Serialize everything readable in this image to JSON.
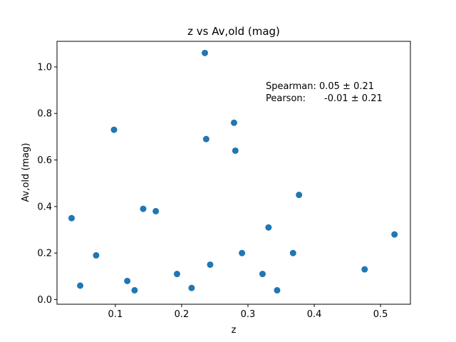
{
  "chart_data": {
    "type": "scatter",
    "title": "z vs Av,old (mag)",
    "xlabel": "z",
    "ylabel": "Av,old (mag)",
    "xlim": [
      0.012,
      0.545
    ],
    "ylim": [
      -0.02,
      1.11
    ],
    "xticks": [
      0.1,
      0.2,
      0.3,
      0.4,
      0.5
    ],
    "xtick_labels": [
      "0.1",
      "0.2",
      "0.3",
      "0.4",
      "0.5"
    ],
    "yticks": [
      0.0,
      0.2,
      0.4,
      0.6,
      0.8,
      1.0
    ],
    "ytick_labels": [
      "0.0",
      "0.2",
      "0.4",
      "0.6",
      "0.8",
      "1.0"
    ],
    "marker_color": "#1f77b4",
    "grid": false,
    "points": [
      {
        "x": 0.034,
        "y": 0.35
      },
      {
        "x": 0.047,
        "y": 0.06
      },
      {
        "x": 0.071,
        "y": 0.19
      },
      {
        "x": 0.098,
        "y": 0.73
      },
      {
        "x": 0.118,
        "y": 0.08
      },
      {
        "x": 0.129,
        "y": 0.04
      },
      {
        "x": 0.142,
        "y": 0.39
      },
      {
        "x": 0.161,
        "y": 0.38
      },
      {
        "x": 0.193,
        "y": 0.11
      },
      {
        "x": 0.215,
        "y": 0.05
      },
      {
        "x": 0.235,
        "y": 1.06
      },
      {
        "x": 0.237,
        "y": 0.69
      },
      {
        "x": 0.243,
        "y": 0.15
      },
      {
        "x": 0.279,
        "y": 0.76
      },
      {
        "x": 0.281,
        "y": 0.64
      },
      {
        "x": 0.291,
        "y": 0.2
      },
      {
        "x": 0.322,
        "y": 0.11
      },
      {
        "x": 0.331,
        "y": 0.31
      },
      {
        "x": 0.344,
        "y": 0.04
      },
      {
        "x": 0.368,
        "y": 0.2
      },
      {
        "x": 0.377,
        "y": 0.45
      },
      {
        "x": 0.476,
        "y": 0.13
      },
      {
        "x": 0.521,
        "y": 0.28
      }
    ],
    "annotation": {
      "line1": "Spearman: 0.05 ± 0.21",
      "line2_label": "Pearson:",
      "line2_value": "-0.01 ± 0.21"
    }
  }
}
